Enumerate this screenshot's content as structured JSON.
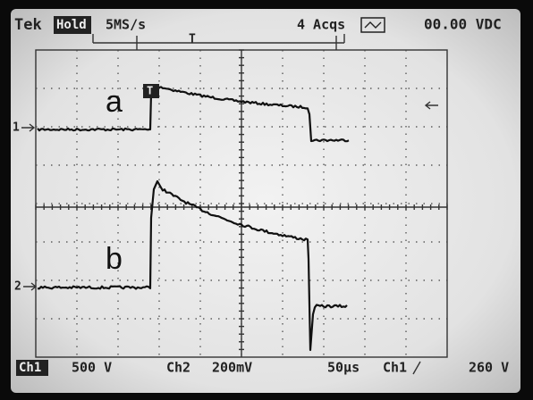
{
  "header": {
    "brand": "Tek",
    "mode": "Hold",
    "sample_rate": "5MS/s",
    "acquisitions": "4 Acqs",
    "readout": "00.00 VDC"
  },
  "channels": [
    {
      "marker": "1",
      "label": "a"
    },
    {
      "marker": "2",
      "label": "b"
    }
  ],
  "trigger_marker": "T",
  "footer": {
    "ch1_name": "Ch1",
    "ch1_scale": "500 V",
    "ch2_name": "Ch2",
    "ch2_scale": "200mV",
    "timebase": "50µs",
    "trigger_source": "Ch1",
    "trigger_level": "260 V"
  }
}
